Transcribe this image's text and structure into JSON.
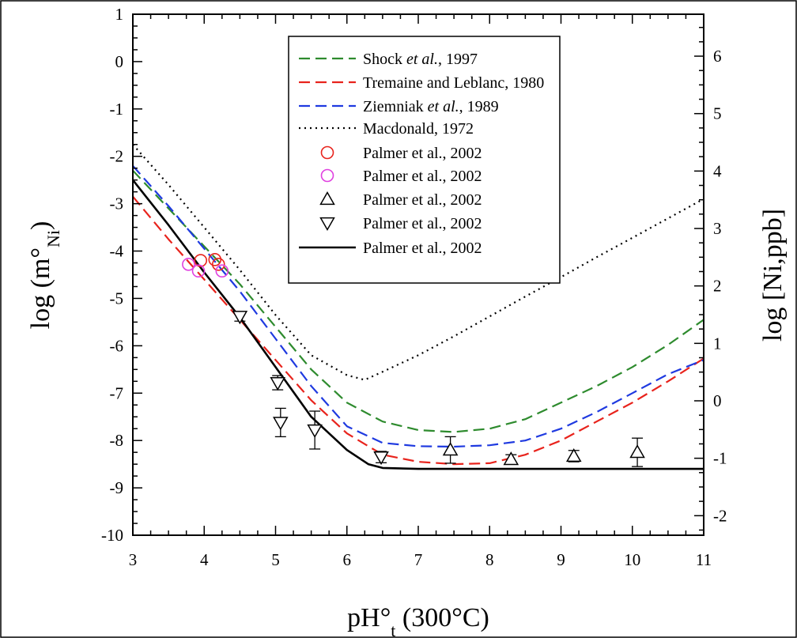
{
  "chart_data": {
    "type": "line",
    "xlabel": {
      "main": "pH°",
      "sub": "t",
      "tail": " (300°C)"
    },
    "ylabel": {
      "main": "log (m°",
      "sub": "Ni",
      "tail": ")"
    },
    "y2label": "log [Ni,ppb]",
    "xlim": [
      3,
      11
    ],
    "ylim": [
      -10,
      1
    ],
    "y2lim": [
      -2.34,
      6.73
    ],
    "x_ticks": [
      "3",
      "4",
      "5",
      "6",
      "7",
      "8",
      "9",
      "10",
      "11"
    ],
    "y_ticks": [
      "1",
      "0",
      "-1",
      "-2",
      "-3",
      "-4",
      "-5",
      "-6",
      "-7",
      "-8",
      "-9",
      "-10"
    ],
    "y2_ticks": [
      "6",
      "5",
      "4",
      "3",
      "2",
      "1",
      "0",
      "-1",
      "-2"
    ],
    "grid": false,
    "legend_position": "top-right",
    "legend": [
      {
        "name": "Shock",
        "italic": " et al.",
        "rest": ", 1997",
        "symbol": "dashed-line",
        "color": "#2e8b2e"
      },
      {
        "name": "Tremaine and Leblanc, 1980",
        "italic": "",
        "rest": "",
        "symbol": "dashed-line",
        "color": "#e8231c"
      },
      {
        "name": "Ziemniak",
        "italic": " et al.",
        "rest": ", 1989",
        "symbol": "dashed-line",
        "color": "#1f3ae0"
      },
      {
        "name": "Macdonald, 1972",
        "italic": "",
        "rest": "",
        "symbol": "dotted-line",
        "color": "#000000"
      },
      {
        "name": "Palmer et al., 2002",
        "italic": "",
        "rest": "",
        "symbol": "circle",
        "color": "#e8231c"
      },
      {
        "name": "Palmer et al., 2002",
        "italic": "",
        "rest": "",
        "symbol": "circle",
        "color": "#e040e0"
      },
      {
        "name": "Palmer et al., 2002",
        "italic": "",
        "rest": "",
        "symbol": "triangle-up",
        "color": "#000000"
      },
      {
        "name": "Palmer et al., 2002",
        "italic": "",
        "rest": "",
        "symbol": "triangle-down",
        "color": "#000000"
      },
      {
        "name": "Palmer et al., 2002",
        "italic": "",
        "rest": "",
        "symbol": "solid-line",
        "color": "#000000"
      }
    ],
    "series": [
      {
        "style": "dashed",
        "color": "#2e8b2e",
        "x": [
          3,
          3.5,
          4,
          4.5,
          5,
          5.5,
          6,
          6.5,
          7,
          7.5,
          8,
          8.5,
          9,
          9.5,
          10,
          10.5,
          11
        ],
        "y": [
          -2.3,
          -3.1,
          -3.9,
          -4.7,
          -5.6,
          -6.5,
          -7.2,
          -7.6,
          -7.78,
          -7.82,
          -7.75,
          -7.55,
          -7.2,
          -6.85,
          -6.45,
          -5.98,
          -5.45
        ]
      },
      {
        "style": "dashed",
        "color": "#e8231c",
        "x": [
          3,
          3.5,
          4,
          4.5,
          5,
          5.5,
          6,
          6.5,
          7,
          7.5,
          8,
          8.5,
          9,
          9.5,
          10,
          10.5,
          11
        ],
        "y": [
          -2.85,
          -3.75,
          -4.6,
          -5.45,
          -6.3,
          -7.15,
          -7.85,
          -8.3,
          -8.45,
          -8.5,
          -8.48,
          -8.3,
          -8.0,
          -7.6,
          -7.2,
          -6.75,
          -6.27
        ]
      },
      {
        "style": "dashed",
        "color": "#1f3ae0",
        "x": [
          3,
          3.5,
          4,
          4.5,
          5,
          5.5,
          6,
          6.5,
          7,
          7.5,
          8,
          8.5,
          9,
          9.5,
          10,
          10.5,
          11
        ],
        "y": [
          -2.2,
          -3.05,
          -3.95,
          -4.85,
          -5.85,
          -6.85,
          -7.7,
          -8.05,
          -8.12,
          -8.13,
          -8.1,
          -8.0,
          -7.75,
          -7.4,
          -7.0,
          -6.6,
          -6.3
        ]
      },
      {
        "style": "dotted",
        "color": "#000000",
        "x": [
          3,
          3.5,
          4,
          4.5,
          5,
          5.5,
          6,
          6.25,
          6.5,
          7,
          7.5,
          8,
          8.5,
          9,
          9.5,
          10,
          10.5,
          11
        ],
        "y": [
          -1.75,
          -2.6,
          -3.5,
          -4.4,
          -5.35,
          -6.2,
          -6.62,
          -6.72,
          -6.55,
          -6.2,
          -5.8,
          -5.38,
          -4.96,
          -4.55,
          -4.13,
          -3.72,
          -3.31,
          -2.9
        ]
      },
      {
        "style": "solid",
        "color": "#000000",
        "x": [
          3,
          3.5,
          4,
          4.5,
          5,
          5.5,
          6,
          6.3,
          6.5,
          7,
          8,
          9,
          10,
          11
        ],
        "y": [
          -2.5,
          -3.45,
          -4.45,
          -5.4,
          -6.45,
          -7.5,
          -8.2,
          -8.5,
          -8.58,
          -8.6,
          -8.6,
          -8.6,
          -8.6,
          -8.6
        ]
      }
    ],
    "points": [
      {
        "marker": "circle",
        "color": "#e8231c",
        "x": [
          3.95,
          4.15,
          4.2
        ],
        "y": [
          -4.2,
          -4.18,
          -4.28
        ]
      },
      {
        "marker": "circle",
        "color": "#e040e0",
        "x": [
          3.78,
          3.92,
          4.25
        ],
        "y": [
          -4.28,
          -4.42,
          -4.42
        ]
      },
      {
        "marker": "triangle-up",
        "color": "#000000",
        "x": [
          7.45,
          8.3,
          9.18,
          10.07
        ],
        "y": [
          -8.2,
          -8.4,
          -8.33,
          -8.25
        ],
        "err": [
          0.28,
          0.1,
          0.12,
          0.3
        ]
      },
      {
        "marker": "triangle-down",
        "color": "#000000",
        "x": [
          4.5,
          5.03,
          5.07,
          5.55,
          6.48
        ],
        "y": [
          -5.38,
          -6.78,
          -7.62,
          -7.78,
          -8.35
        ],
        "err": [
          0.1,
          0.15,
          0.3,
          0.4,
          0.12
        ]
      }
    ]
  }
}
